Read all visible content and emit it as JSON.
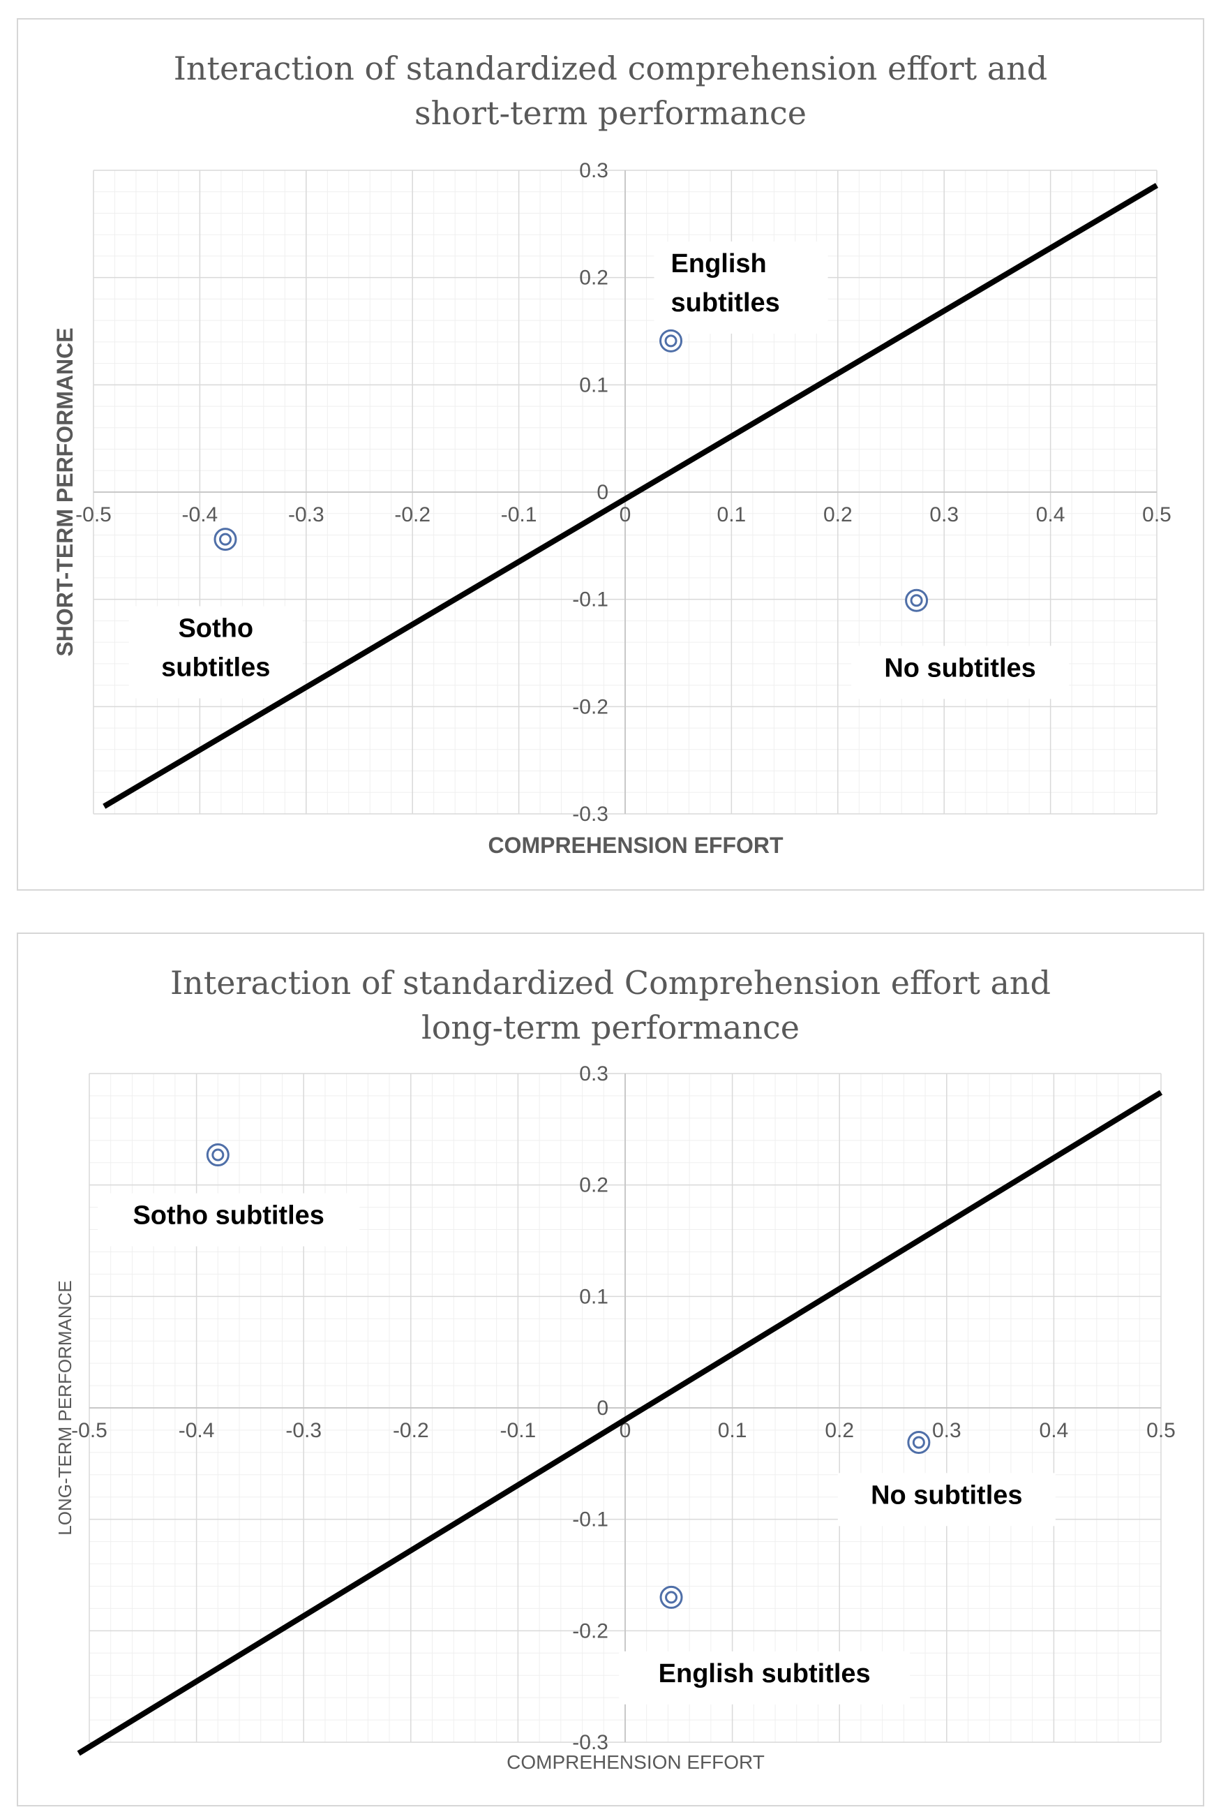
{
  "colors": {
    "grid_major": "#d9d9d9",
    "grid_minor": "#efefef",
    "marker": "#4f6fa8",
    "line": "#000000",
    "text": "#595959"
  },
  "chart_data": [
    {
      "type": "scatter",
      "title_lines": [
        "Interaction of standardized comprehension effort and",
        "short-term performance"
      ],
      "xlabel": "COMPREHENSION EFFORT",
      "ylabel": "SHORT-TERM PERFORMANCE",
      "xlim": [
        -0.5,
        0.5
      ],
      "ylim": [
        -0.3,
        0.3
      ],
      "x_ticks": [
        "-0.5",
        "-0.4",
        "-0.3",
        "-0.2",
        "-0.1",
        "0",
        "0.1",
        "0.2",
        "0.3",
        "0.4",
        "0.5"
      ],
      "y_ticks": [
        "0.3",
        "0.2",
        "0.1",
        "0",
        "-0.1",
        "-0.2",
        "-0.3"
      ],
      "points": [
        {
          "label": "English subtitles",
          "x": 0.043,
          "y": 0.141
        },
        {
          "label": "Sotho subtitles",
          "x": -0.376,
          "y": -0.044
        },
        {
          "label": "No subtitles",
          "x": 0.274,
          "y": -0.101
        }
      ],
      "reference_line": {
        "x": [
          -0.49,
          0.5
        ],
        "y": [
          -0.293,
          0.286
        ]
      },
      "annotations": [
        {
          "lines": [
            "English",
            "subtitles"
          ],
          "x": 0.043,
          "y": 0.205,
          "align": "start"
        },
        {
          "lines": [
            "Sotho",
            "subtitles"
          ],
          "x": -0.385,
          "y": -0.135,
          "align": "middle"
        },
        {
          "lines": [
            "No subtitles"
          ],
          "x": 0.315,
          "y": -0.172,
          "align": "middle"
        }
      ],
      "x_axis_at_y": 0,
      "y_axis_at_x": 0
    },
    {
      "type": "scatter",
      "title_lines": [
        "Interaction of standardized Comprehension effort and",
        "long-term performance"
      ],
      "xlabel": "COMPREHENSION EFFORT",
      "ylabel": "LONG-TERM PERFORMANCE",
      "xlim": [
        -0.5,
        0.5
      ],
      "ylim": [
        -0.3,
        0.3
      ],
      "x_ticks": [
        "-0.5",
        "-0.4",
        "-0.3",
        "-0.2",
        "-0.1",
        "0",
        "0.1",
        "0.2",
        "0.3",
        "0.4",
        "0.5"
      ],
      "y_ticks": [
        "0.3",
        "0.2",
        "0.1",
        "0",
        "-0.1",
        "-0.2",
        "-0.3"
      ],
      "points": [
        {
          "label": "Sotho subtitles",
          "x": -0.38,
          "y": 0.227
        },
        {
          "label": "No subtitles",
          "x": 0.274,
          "y": -0.031
        },
        {
          "label": "English subtitles",
          "x": 0.043,
          "y": -0.17
        }
      ],
      "reference_line": {
        "x": [
          -0.51,
          0.5
        ],
        "y": [
          -0.31,
          0.283
        ]
      },
      "annotations": [
        {
          "lines": [
            "Sotho subtitles"
          ],
          "x": -0.37,
          "y": 0.165,
          "align": "middle"
        },
        {
          "lines": [
            "No subtitles"
          ],
          "x": 0.3,
          "y": -0.086,
          "align": "middle"
        },
        {
          "lines": [
            "English subtitles"
          ],
          "x": 0.13,
          "y": -0.246,
          "align": "middle"
        }
      ],
      "x_axis_at_y": 0,
      "y_axis_at_x": 0
    }
  ]
}
